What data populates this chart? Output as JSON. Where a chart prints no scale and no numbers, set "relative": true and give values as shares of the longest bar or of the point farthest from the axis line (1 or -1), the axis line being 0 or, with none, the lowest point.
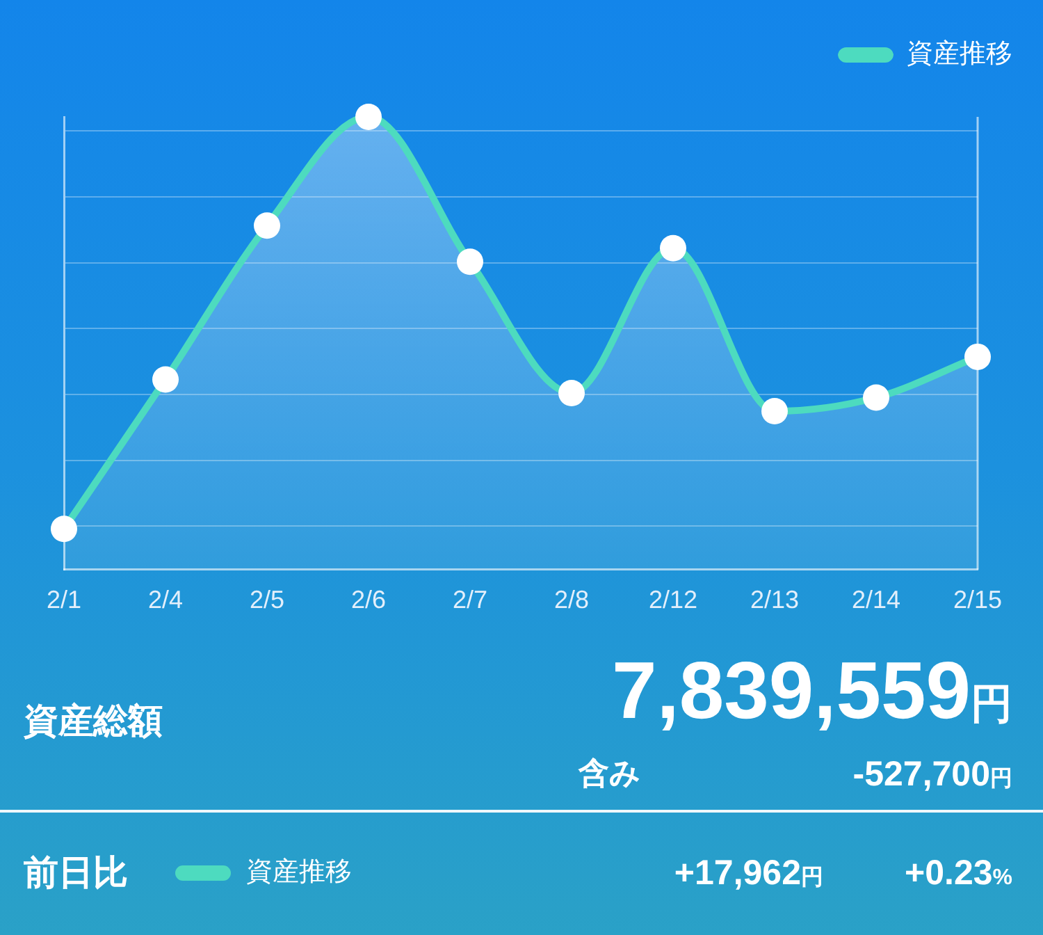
{
  "chart_data": [
    {
      "type": "area",
      "categories": [
        "2/1",
        "2/4",
        "2/5",
        "2/6",
        "2/7",
        "2/8",
        "2/12",
        "2/13",
        "2/14",
        "2/15"
      ],
      "series": [
        {
          "name": "資産推移",
          "color": "#4ddbbf",
          "values": [
            0.09,
            0.42,
            0.76,
            1,
            0.68,
            0.39,
            0.71,
            0.35,
            0.38,
            0.47
          ]
        }
      ],
      "relative": true,
      "grid": "y",
      "legend": "top right",
      "marker": "circle"
    },
    {
      "type": "other",
      "annotations": [
        "資産総額",
        "7,839,559円",
        "含み",
        "-527,700円",
        "前日比",
        "資産推移",
        "+17,962円",
        "+0.23%"
      ]
    }
  ]
}
